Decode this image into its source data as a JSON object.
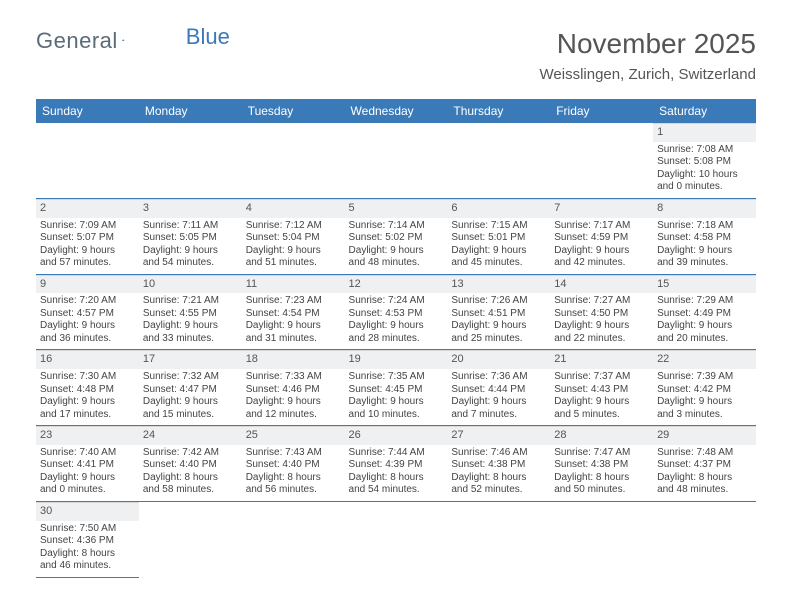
{
  "logo": {
    "text_a": "General",
    "text_b": "Blue"
  },
  "title": "November 2025",
  "location": "Weisslingen, Zurich, Switzerland",
  "day_labels": [
    "Sunday",
    "Monday",
    "Tuesday",
    "Wednesday",
    "Thursday",
    "Friday",
    "Saturday"
  ],
  "colors": {
    "header_bg": "#3a7ab8",
    "header_text": "#ffffff",
    "logo_gray": "#5c6b78",
    "logo_blue": "#3a7ab8",
    "divider": "#3a7ab8",
    "daynum_bg": "#eef0f2",
    "text": "#444444"
  },
  "weeks": [
    [
      null,
      null,
      null,
      null,
      null,
      null,
      {
        "n": "1",
        "sunrise": "Sunrise: 7:08 AM",
        "sunset": "Sunset: 5:08 PM",
        "day1": "Daylight: 10 hours",
        "day2": "and 0 minutes."
      }
    ],
    [
      {
        "n": "2",
        "sunrise": "Sunrise: 7:09 AM",
        "sunset": "Sunset: 5:07 PM",
        "day1": "Daylight: 9 hours",
        "day2": "and 57 minutes."
      },
      {
        "n": "3",
        "sunrise": "Sunrise: 7:11 AM",
        "sunset": "Sunset: 5:05 PM",
        "day1": "Daylight: 9 hours",
        "day2": "and 54 minutes."
      },
      {
        "n": "4",
        "sunrise": "Sunrise: 7:12 AM",
        "sunset": "Sunset: 5:04 PM",
        "day1": "Daylight: 9 hours",
        "day2": "and 51 minutes."
      },
      {
        "n": "5",
        "sunrise": "Sunrise: 7:14 AM",
        "sunset": "Sunset: 5:02 PM",
        "day1": "Daylight: 9 hours",
        "day2": "and 48 minutes."
      },
      {
        "n": "6",
        "sunrise": "Sunrise: 7:15 AM",
        "sunset": "Sunset: 5:01 PM",
        "day1": "Daylight: 9 hours",
        "day2": "and 45 minutes."
      },
      {
        "n": "7",
        "sunrise": "Sunrise: 7:17 AM",
        "sunset": "Sunset: 4:59 PM",
        "day1": "Daylight: 9 hours",
        "day2": "and 42 minutes."
      },
      {
        "n": "8",
        "sunrise": "Sunrise: 7:18 AM",
        "sunset": "Sunset: 4:58 PM",
        "day1": "Daylight: 9 hours",
        "day2": "and 39 minutes."
      }
    ],
    [
      {
        "n": "9",
        "sunrise": "Sunrise: 7:20 AM",
        "sunset": "Sunset: 4:57 PM",
        "day1": "Daylight: 9 hours",
        "day2": "and 36 minutes."
      },
      {
        "n": "10",
        "sunrise": "Sunrise: 7:21 AM",
        "sunset": "Sunset: 4:55 PM",
        "day1": "Daylight: 9 hours",
        "day2": "and 33 minutes."
      },
      {
        "n": "11",
        "sunrise": "Sunrise: 7:23 AM",
        "sunset": "Sunset: 4:54 PM",
        "day1": "Daylight: 9 hours",
        "day2": "and 31 minutes."
      },
      {
        "n": "12",
        "sunrise": "Sunrise: 7:24 AM",
        "sunset": "Sunset: 4:53 PM",
        "day1": "Daylight: 9 hours",
        "day2": "and 28 minutes."
      },
      {
        "n": "13",
        "sunrise": "Sunrise: 7:26 AM",
        "sunset": "Sunset: 4:51 PM",
        "day1": "Daylight: 9 hours",
        "day2": "and 25 minutes."
      },
      {
        "n": "14",
        "sunrise": "Sunrise: 7:27 AM",
        "sunset": "Sunset: 4:50 PM",
        "day1": "Daylight: 9 hours",
        "day2": "and 22 minutes."
      },
      {
        "n": "15",
        "sunrise": "Sunrise: 7:29 AM",
        "sunset": "Sunset: 4:49 PM",
        "day1": "Daylight: 9 hours",
        "day2": "and 20 minutes."
      }
    ],
    [
      {
        "n": "16",
        "sunrise": "Sunrise: 7:30 AM",
        "sunset": "Sunset: 4:48 PM",
        "day1": "Daylight: 9 hours",
        "day2": "and 17 minutes."
      },
      {
        "n": "17",
        "sunrise": "Sunrise: 7:32 AM",
        "sunset": "Sunset: 4:47 PM",
        "day1": "Daylight: 9 hours",
        "day2": "and 15 minutes."
      },
      {
        "n": "18",
        "sunrise": "Sunrise: 7:33 AM",
        "sunset": "Sunset: 4:46 PM",
        "day1": "Daylight: 9 hours",
        "day2": "and 12 minutes."
      },
      {
        "n": "19",
        "sunrise": "Sunrise: 7:35 AM",
        "sunset": "Sunset: 4:45 PM",
        "day1": "Daylight: 9 hours",
        "day2": "and 10 minutes."
      },
      {
        "n": "20",
        "sunrise": "Sunrise: 7:36 AM",
        "sunset": "Sunset: 4:44 PM",
        "day1": "Daylight: 9 hours",
        "day2": "and 7 minutes."
      },
      {
        "n": "21",
        "sunrise": "Sunrise: 7:37 AM",
        "sunset": "Sunset: 4:43 PM",
        "day1": "Daylight: 9 hours",
        "day2": "and 5 minutes."
      },
      {
        "n": "22",
        "sunrise": "Sunrise: 7:39 AM",
        "sunset": "Sunset: 4:42 PM",
        "day1": "Daylight: 9 hours",
        "day2": "and 3 minutes."
      }
    ],
    [
      {
        "n": "23",
        "sunrise": "Sunrise: 7:40 AM",
        "sunset": "Sunset: 4:41 PM",
        "day1": "Daylight: 9 hours",
        "day2": "and 0 minutes."
      },
      {
        "n": "24",
        "sunrise": "Sunrise: 7:42 AM",
        "sunset": "Sunset: 4:40 PM",
        "day1": "Daylight: 8 hours",
        "day2": "and 58 minutes."
      },
      {
        "n": "25",
        "sunrise": "Sunrise: 7:43 AM",
        "sunset": "Sunset: 4:40 PM",
        "day1": "Daylight: 8 hours",
        "day2": "and 56 minutes."
      },
      {
        "n": "26",
        "sunrise": "Sunrise: 7:44 AM",
        "sunset": "Sunset: 4:39 PM",
        "day1": "Daylight: 8 hours",
        "day2": "and 54 minutes."
      },
      {
        "n": "27",
        "sunrise": "Sunrise: 7:46 AM",
        "sunset": "Sunset: 4:38 PM",
        "day1": "Daylight: 8 hours",
        "day2": "and 52 minutes."
      },
      {
        "n": "28",
        "sunrise": "Sunrise: 7:47 AM",
        "sunset": "Sunset: 4:38 PM",
        "day1": "Daylight: 8 hours",
        "day2": "and 50 minutes."
      },
      {
        "n": "29",
        "sunrise": "Sunrise: 7:48 AM",
        "sunset": "Sunset: 4:37 PM",
        "day1": "Daylight: 8 hours",
        "day2": "and 48 minutes."
      }
    ],
    [
      {
        "n": "30",
        "sunrise": "Sunrise: 7:50 AM",
        "sunset": "Sunset: 4:36 PM",
        "day1": "Daylight: 8 hours",
        "day2": "and 46 minutes."
      },
      null,
      null,
      null,
      null,
      null,
      null
    ]
  ]
}
